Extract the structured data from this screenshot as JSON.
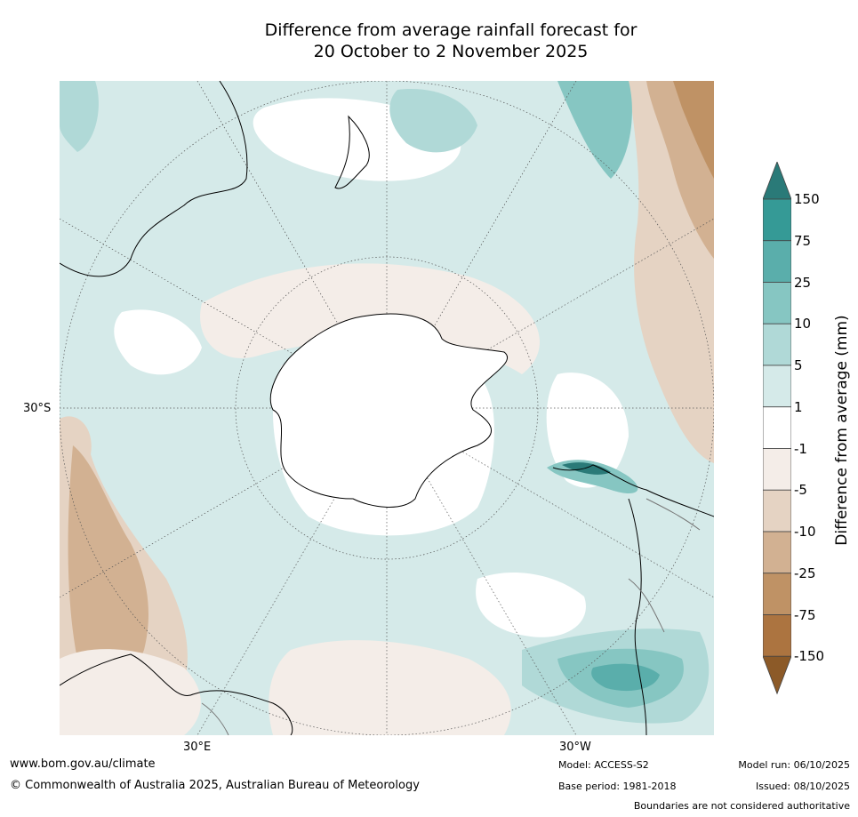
{
  "title": {
    "line1": "Difference from average rainfall forecast for",
    "line2": "20 October to 2 November 2025"
  },
  "axes": {
    "lat_label": "30°S",
    "lon_label_east": "30°E",
    "lon_label_west": "30°W"
  },
  "colorbar": {
    "title": "Difference from average (mm)",
    "ticks": [
      "150",
      "75",
      "25",
      "10",
      "5",
      "1",
      "-1",
      "-5",
      "-10",
      "-25",
      "-75",
      "-150"
    ],
    "bins": [
      {
        "range": "above 150",
        "color": "#2a7a78"
      },
      {
        "range": "75 to 150",
        "color": "#359a96"
      },
      {
        "range": "25 to 75",
        "color": "#5aaeab"
      },
      {
        "range": "10 to 25",
        "color": "#86c6c2"
      },
      {
        "range": "5 to 10",
        "color": "#b0d9d7"
      },
      {
        "range": "1 to 5",
        "color": "#d5eae9"
      },
      {
        "range": "-1 to 1",
        "color": "#ffffff"
      },
      {
        "range": "-5 to -1",
        "color": "#f4ede8"
      },
      {
        "range": "-10 to -5",
        "color": "#e5d3c3"
      },
      {
        "range": "-25 to -10",
        "color": "#d2b192"
      },
      {
        "range": "-75 to -25",
        "color": "#bf9265"
      },
      {
        "range": "-150 to -75",
        "color": "#ac7440"
      },
      {
        "range": "below -150",
        "color": "#8c5a28"
      }
    ]
  },
  "footer": {
    "website": "www.bom.gov.au/climate",
    "copyright": "© Commonwealth of Australia 2025, Australian Bureau of Meteorology",
    "model": "Model: ACCESS-S2",
    "base_period": "Base period: 1981-2018",
    "model_run": "Model run: 06/10/2025",
    "issued": "Issued: 08/10/2025",
    "disclaimer": "Boundaries are not considered authoritative"
  }
}
